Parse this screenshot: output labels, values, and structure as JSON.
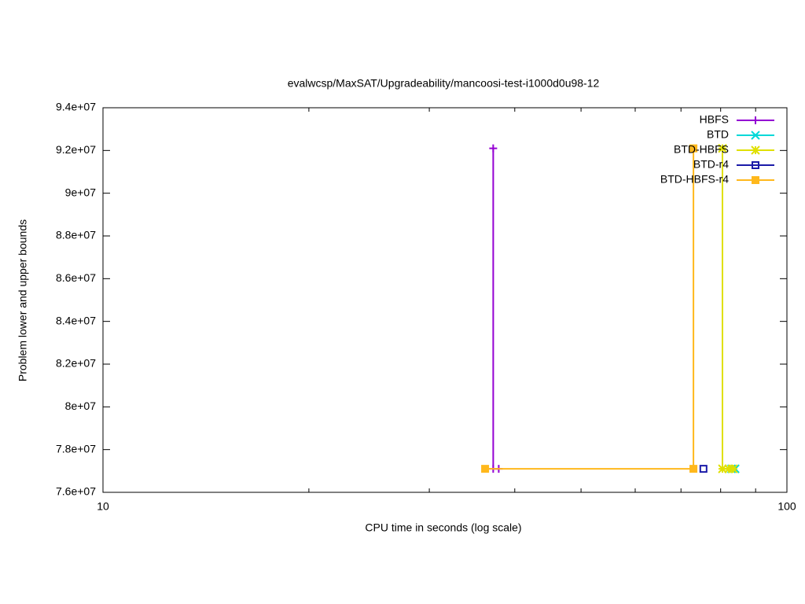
{
  "chart_data": {
    "type": "line",
    "title": "evalwcsp/MaxSAT/Upgradeability/mancoosi-test-i1000d0u98-12",
    "xlabel": "CPU time in seconds (log scale)",
    "ylabel": "Problem lower and upper bounds",
    "xscale": "log",
    "xlim": [
      10,
      100
    ],
    "xticks": [
      10,
      100
    ],
    "xminorticks": [
      20,
      30,
      40,
      50,
      60,
      70,
      80,
      90
    ],
    "ylim": [
      76000000,
      94000000
    ],
    "yticks": [
      {
        "value": 76000000,
        "label": "7.6e+07"
      },
      {
        "value": 78000000,
        "label": "7.8e+07"
      },
      {
        "value": 80000000,
        "label": "8e+07"
      },
      {
        "value": 82000000,
        "label": "8.2e+07"
      },
      {
        "value": 84000000,
        "label": "8.4e+07"
      },
      {
        "value": 86000000,
        "label": "8.6e+07"
      },
      {
        "value": 88000000,
        "label": "8.8e+07"
      },
      {
        "value": 90000000,
        "label": "9e+07"
      },
      {
        "value": 92000000,
        "label": "9.2e+07"
      },
      {
        "value": 94000000,
        "label": "9.4e+07"
      }
    ],
    "legend": "top-right",
    "series": [
      {
        "name": "HBFS",
        "color": "#9400d3",
        "marker": "plus",
        "x": [
          37.2,
          37.2,
          37.9
        ],
        "values": [
          92100000,
          77100000,
          77100000
        ]
      },
      {
        "name": "BTD",
        "color": "#00d8d8",
        "marker": "cross",
        "x": [
          83.0,
          84.0
        ],
        "values": [
          77100000,
          77100000
        ]
      },
      {
        "name": "BTD-HBFS",
        "color": "#e0e000",
        "marker": "star",
        "x": [
          80.5,
          80.5,
          82.2,
          83.5
        ],
        "values": [
          92100000,
          77100000,
          77100000,
          77100000
        ]
      },
      {
        "name": "BTD-r4",
        "color": "#1a1aa8",
        "marker": "open-square",
        "x": [
          75.5
        ],
        "values": [
          77100000
        ]
      },
      {
        "name": "BTD-HBFS-r4",
        "color": "#ffb81c",
        "marker": "filled-square",
        "x": [
          36.2,
          73.0,
          73.0
        ],
        "values": [
          77100000,
          77100000,
          92100000
        ]
      }
    ]
  }
}
